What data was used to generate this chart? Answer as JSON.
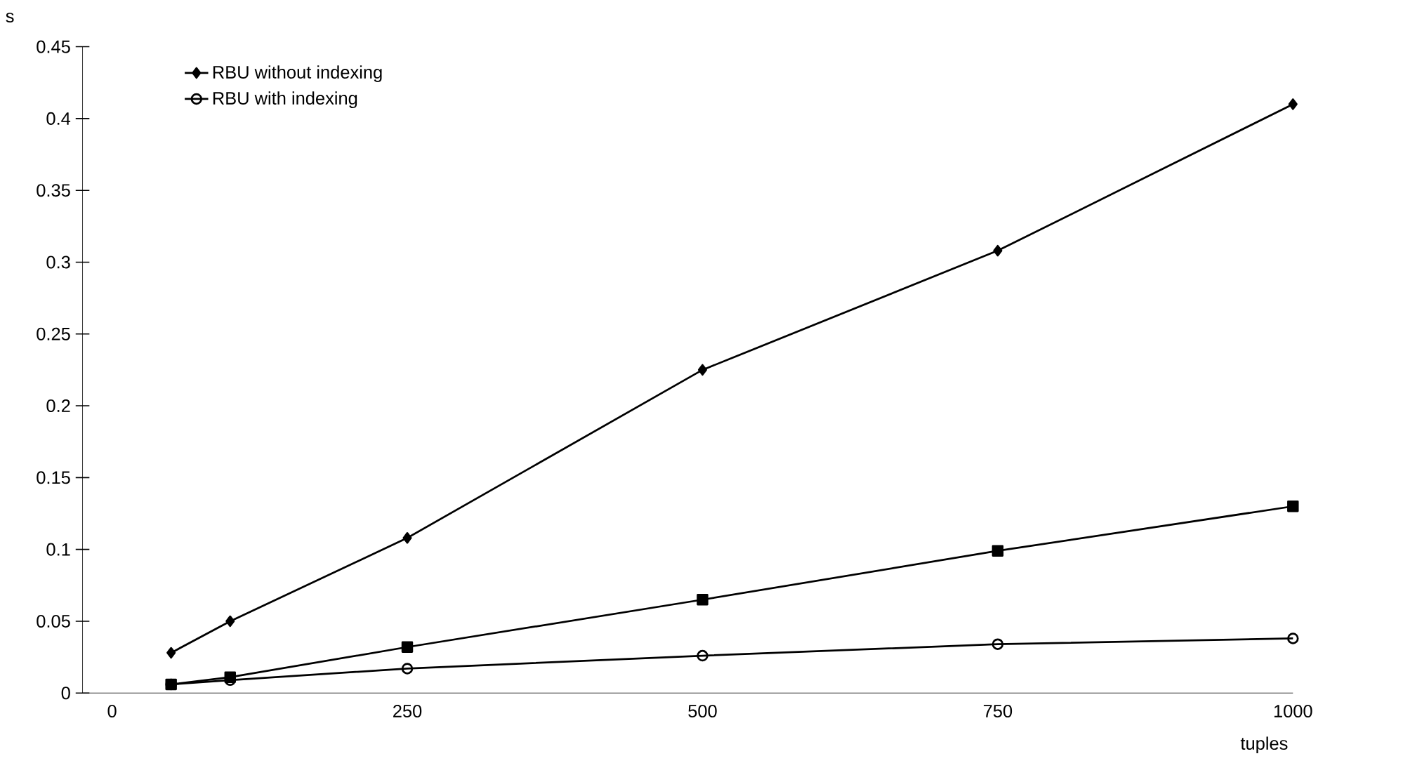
{
  "chart_data": {
    "type": "line",
    "xlabel": "tuples",
    "ylabel": "s",
    "x": [
      50,
      100,
      250,
      500,
      750,
      1000
    ],
    "series": [
      {
        "name": "RBU  without indexing",
        "color": "#000000",
        "marker": "diamond",
        "values": [
          0.028,
          0.05,
          0.108,
          0.225,
          0.308,
          0.41
        ]
      },
      {
        "color": "#000000",
        "marker": "square",
        "values": [
          0.006,
          0.011,
          0.032,
          0.065,
          0.099,
          0.13
        ]
      },
      {
        "name": "RBU with indexing",
        "color": "#000000",
        "marker": "circle",
        "values": [
          0.006,
          0.009,
          0.017,
          0.026,
          0.034,
          0.038
        ]
      }
    ],
    "xlim": [
      -25,
      1000
    ],
    "xticks": [
      0,
      250,
      500,
      750,
      1000
    ],
    "ylim": [
      0,
      0.45
    ],
    "yticks": [
      0,
      0.05,
      0.1,
      0.15,
      0.2,
      0.25,
      0.3,
      0.35,
      0.4,
      0.45
    ],
    "grid": false,
    "legend": "top left",
    "line_style": "solid"
  }
}
